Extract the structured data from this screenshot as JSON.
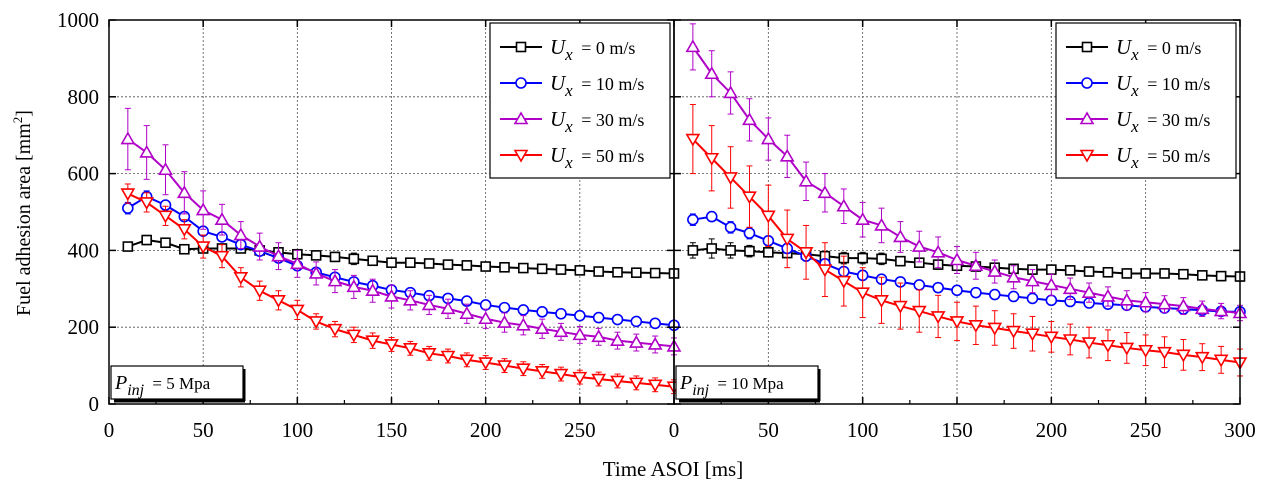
{
  "figure": {
    "ylabel": "Fuel adhesion area [mm",
    "ylabel_sup": "2",
    "ylabel_close": "]",
    "xlabel": "Time ASOI [ms]"
  },
  "legend_entries": [
    {
      "symbol": "U",
      "sub": "x",
      "value": "=   0 m/s"
    },
    {
      "symbol": "U",
      "sub": "x",
      "value": "=  10 m/s"
    },
    {
      "symbol": "U",
      "sub": "x",
      "value": "=  30 m/s"
    },
    {
      "symbol": "U",
      "sub": "x",
      "value": "=  50 m/s"
    }
  ],
  "chart_data": [
    {
      "type": "line",
      "panel_label": {
        "symbol": "P",
        "sub": "inj",
        "value": "= 5 Mpa"
      },
      "xlim": [
        0,
        300
      ],
      "ylim": [
        0,
        1000
      ],
      "xticks": [
        0,
        50,
        100,
        150,
        200,
        250
      ],
      "xtick_labels": [
        "0",
        "50",
        "100",
        "150",
        "200",
        "250"
      ],
      "yticks": [
        0,
        200,
        400,
        600,
        800,
        1000
      ],
      "ytick_labels": [
        "0",
        "200",
        "400",
        "600",
        "800",
        "1000"
      ],
      "grid": true,
      "legend_position": "top-right",
      "x": [
        10,
        20,
        30,
        40,
        50,
        60,
        70,
        80,
        90,
        100,
        110,
        120,
        130,
        140,
        150,
        160,
        170,
        180,
        190,
        200,
        210,
        220,
        230,
        240,
        250,
        260,
        270,
        280,
        290,
        300
      ],
      "series": [
        {
          "name": "Ux = 0 m/s",
          "color": "#000000",
          "marker": "square",
          "values": [
            410,
            427,
            420,
            403,
            405,
            405,
            405,
            400,
            395,
            390,
            387,
            383,
            378,
            373,
            368,
            368,
            366,
            363,
            361,
            358,
            356,
            354,
            352,
            350,
            348,
            345,
            343,
            342,
            341,
            340
          ],
          "errors": [
            10,
            12,
            12,
            8,
            8,
            8,
            8,
            8,
            8,
            10,
            12,
            12,
            15,
            12,
            10,
            10,
            10,
            8,
            8,
            8,
            8,
            8,
            8,
            8,
            8,
            8,
            8,
            8,
            8,
            8
          ]
        },
        {
          "name": "Ux = 10 m/s",
          "color": "#0000ff",
          "marker": "circle",
          "values": [
            510,
            540,
            518,
            488,
            450,
            435,
            415,
            398,
            380,
            360,
            343,
            330,
            318,
            308,
            297,
            290,
            282,
            275,
            268,
            258,
            251,
            245,
            240,
            235,
            230,
            225,
            220,
            215,
            210,
            205
          ],
          "errors": [
            15,
            15,
            10,
            10,
            10,
            8,
            8,
            8,
            8,
            8,
            8,
            8,
            8,
            8,
            8,
            8,
            8,
            8,
            8,
            8,
            8,
            8,
            8,
            8,
            8,
            8,
            8,
            8,
            8,
            8
          ]
        },
        {
          "name": "Ux = 30 m/s",
          "color": "#b000c8",
          "marker": "triangle-up",
          "values": [
            690,
            655,
            610,
            550,
            505,
            480,
            440,
            410,
            385,
            365,
            340,
            320,
            305,
            295,
            280,
            270,
            258,
            248,
            235,
            222,
            212,
            205,
            196,
            188,
            180,
            175,
            165,
            160,
            155,
            150
          ],
          "errors": [
            80,
            70,
            65,
            55,
            50,
            40,
            35,
            35,
            35,
            35,
            30,
            30,
            30,
            30,
            30,
            25,
            25,
            25,
            25,
            25,
            25,
            25,
            25,
            22,
            22,
            22,
            22,
            22,
            22,
            22
          ]
        },
        {
          "name": "Ux = 50 m/s",
          "color": "#ff0000",
          "marker": "triangle-down",
          "values": [
            548,
            525,
            490,
            455,
            410,
            385,
            330,
            295,
            270,
            245,
            215,
            195,
            180,
            165,
            155,
            145,
            132,
            125,
            115,
            108,
            100,
            92,
            85,
            78,
            70,
            65,
            60,
            55,
            50,
            45
          ],
          "errors": [
            25,
            25,
            25,
            25,
            30,
            30,
            25,
            25,
            25,
            25,
            20,
            20,
            20,
            20,
            18,
            18,
            18,
            18,
            18,
            18,
            18,
            18,
            18,
            18,
            18,
            18,
            18,
            18,
            18,
            18
          ]
        }
      ]
    },
    {
      "type": "line",
      "panel_label": {
        "symbol": "P",
        "sub": "inj",
        "value": "= 10 Mpa"
      },
      "xlim": [
        0,
        300
      ],
      "ylim": [
        0,
        1000
      ],
      "xticks": [
        0,
        50,
        100,
        150,
        200,
        250,
        300
      ],
      "xtick_labels": [
        "0",
        "50",
        "100",
        "150",
        "200",
        "250",
        "300"
      ],
      "yticks": [
        0,
        200,
        400,
        600,
        800,
        1000
      ],
      "grid": true,
      "legend_position": "top-right",
      "x": [
        10,
        20,
        30,
        40,
        50,
        60,
        70,
        80,
        90,
        100,
        110,
        120,
        130,
        140,
        150,
        160,
        170,
        180,
        190,
        200,
        210,
        220,
        230,
        240,
        250,
        260,
        270,
        280,
        290,
        300
      ],
      "series": [
        {
          "name": "Ux = 0 m/s",
          "color": "#000000",
          "marker": "square",
          "values": [
            400,
            405,
            400,
            398,
            395,
            393,
            390,
            385,
            380,
            380,
            378,
            372,
            368,
            363,
            360,
            358,
            355,
            352,
            350,
            350,
            348,
            345,
            343,
            340,
            340,
            340,
            338,
            335,
            333,
            332
          ],
          "errors": [
            20,
            25,
            20,
            15,
            12,
            12,
            12,
            12,
            15,
            15,
            15,
            12,
            12,
            12,
            12,
            12,
            12,
            12,
            12,
            12,
            12,
            12,
            12,
            12,
            12,
            12,
            12,
            12,
            12,
            12
          ]
        },
        {
          "name": "Ux = 10 m/s",
          "color": "#0000ff",
          "marker": "circle",
          "values": [
            480,
            488,
            460,
            445,
            425,
            405,
            385,
            365,
            345,
            335,
            325,
            318,
            310,
            303,
            296,
            290,
            285,
            280,
            275,
            270,
            267,
            263,
            260,
            257,
            253,
            250,
            247,
            244,
            241,
            240
          ],
          "errors": [
            15,
            12,
            15,
            15,
            12,
            12,
            12,
            12,
            12,
            12,
            12,
            12,
            12,
            12,
            12,
            12,
            12,
            12,
            12,
            12,
            12,
            12,
            12,
            12,
            12,
            12,
            12,
            12,
            12,
            12
          ]
        },
        {
          "name": "Ux = 30 m/s",
          "color": "#b000c8",
          "marker": "triangle-up",
          "values": [
            930,
            860,
            810,
            740,
            690,
            645,
            580,
            550,
            515,
            480,
            465,
            435,
            410,
            395,
            375,
            360,
            345,
            330,
            320,
            310,
            300,
            290,
            280,
            270,
            265,
            260,
            255,
            248,
            242,
            237
          ],
          "errors": [
            60,
            60,
            55,
            55,
            55,
            55,
            50,
            50,
            45,
            45,
            45,
            40,
            40,
            40,
            35,
            35,
            30,
            30,
            30,
            28,
            28,
            25,
            25,
            25,
            25,
            22,
            22,
            20,
            20,
            20
          ]
        },
        {
          "name": "Ux = 50 m/s",
          "color": "#ff0000",
          "marker": "triangle-down",
          "values": [
            690,
            640,
            590,
            540,
            490,
            430,
            395,
            350,
            320,
            290,
            270,
            255,
            242,
            228,
            215,
            205,
            198,
            190,
            183,
            175,
            168,
            160,
            153,
            146,
            140,
            135,
            128,
            122,
            115,
            108
          ],
          "errors": [
            90,
            85,
            80,
            80,
            80,
            75,
            70,
            70,
            65,
            65,
            60,
            60,
            55,
            55,
            50,
            50,
            45,
            45,
            45,
            40,
            40,
            40,
            40,
            40,
            40,
            40,
            40,
            35,
            35,
            35
          ]
        }
      ]
    }
  ]
}
